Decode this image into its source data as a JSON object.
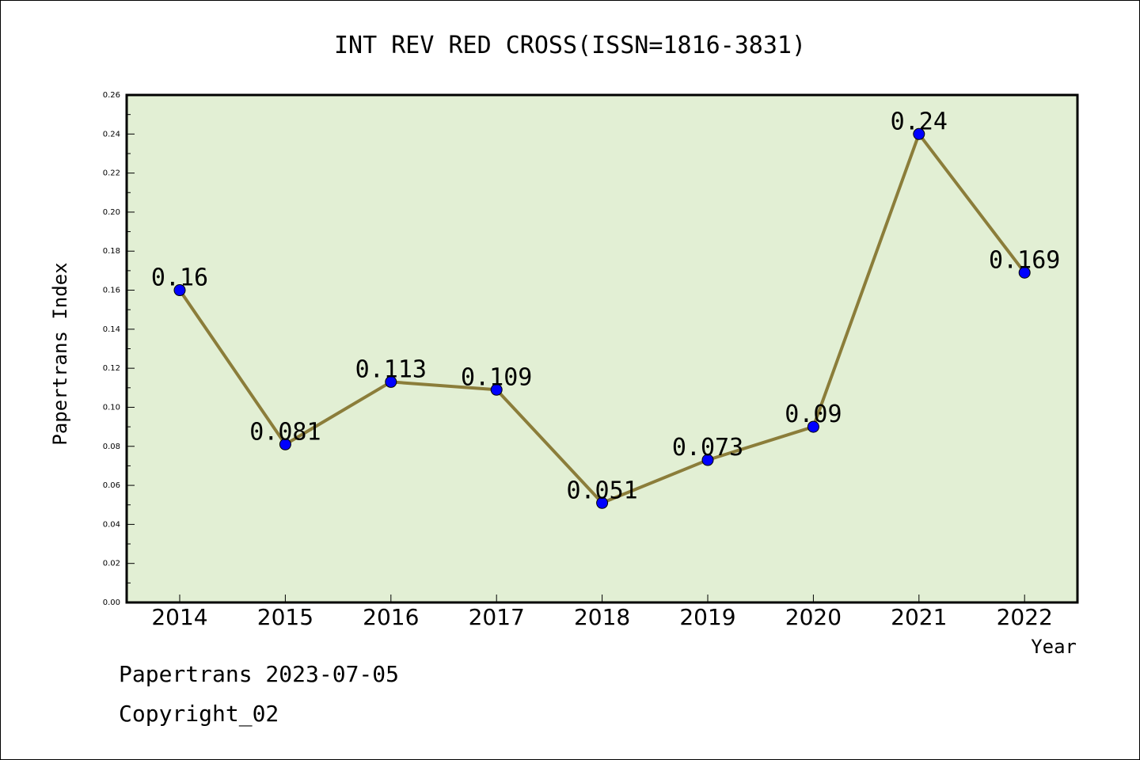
{
  "chart_data": {
    "type": "line",
    "title": "INT REV RED CROSS(ISSN=1816-3831)",
    "xlabel": "Year",
    "ylabel": "Papertrans Index",
    "categories": [
      "2014",
      "2015",
      "2016",
      "2017",
      "2018",
      "2019",
      "2020",
      "2021",
      "2022"
    ],
    "values": [
      0.16,
      0.081,
      0.113,
      0.109,
      0.051,
      0.073,
      0.09,
      0.24,
      0.169
    ],
    "data_labels": [
      "0.16",
      "0.081",
      "0.113",
      "0.109",
      "0.051",
      "0.073",
      "0.09",
      "0.24",
      "0.169"
    ],
    "ylim": [
      0,
      0.26
    ],
    "yticks": [
      "0.00",
      "0.02",
      "0.04",
      "0.06",
      "0.08",
      "0.10",
      "0.12",
      "0.14",
      "0.16",
      "0.18",
      "0.20",
      "0.22",
      "0.24",
      "0.26"
    ],
    "grid": false,
    "colors": {
      "plot_background": "#e2efd4",
      "line": "#8b7d3a",
      "marker": "#0000ff"
    }
  },
  "footer": {
    "source": "Papertrans 2023-07-05",
    "copyright": "Copyright_02"
  }
}
